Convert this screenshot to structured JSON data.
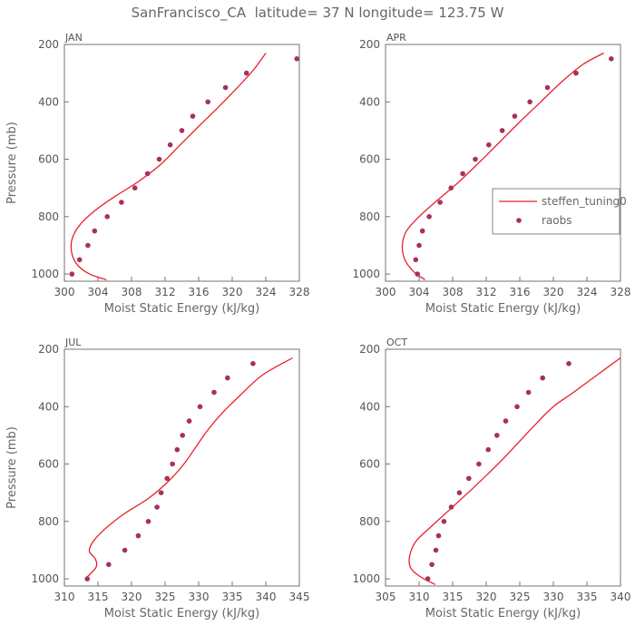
{
  "figure": {
    "title": "SanFrancisco_CA  latitude= 37 N longitude= 123.75 W"
  },
  "legend": {
    "model_label": "steffen_tuning0",
    "obs_label": "raobs",
    "placement": "right of APR panel"
  },
  "colors": {
    "model_line": "#e8202a",
    "obs_marker": "#a8305a",
    "axis": "#666666",
    "text": "#555555"
  },
  "chart_data": [
    {
      "type": "line",
      "panel": "JAN",
      "title": "JAN",
      "xlabel": "Moist Static Energy (kJ/kg)",
      "ylabel": "Pressure (mb)",
      "xlim": [
        300,
        328
      ],
      "xticks": [
        300,
        304,
        308,
        312,
        316,
        320,
        324,
        328
      ],
      "ylim": [
        200,
        1025
      ],
      "yticks": [
        200,
        400,
        600,
        800,
        1000
      ],
      "y_inverted": true,
      "grid": false,
      "series": [
        {
          "name": "steffen_tuning0",
          "kind": "line",
          "x": [
            305.0,
            303.0,
            301.6,
            300.9,
            300.9,
            301.8,
            303.6,
            306.0,
            308.7,
            311.4,
            313.8,
            316.2,
            318.3,
            320.3,
            322.5,
            324.0
          ],
          "y": [
            1020,
            1000,
            970,
            930,
            880,
            830,
            780,
            730,
            680,
            620,
            550,
            480,
            420,
            360,
            290,
            230
          ]
        },
        {
          "name": "raobs",
          "kind": "scatter",
          "x": [
            300.9,
            301.8,
            302.8,
            303.6,
            305.1,
            306.8,
            308.4,
            309.9,
            311.3,
            312.6,
            314.0,
            315.3,
            317.1,
            319.2,
            321.7,
            327.7
          ],
          "y": [
            1000,
            950,
            900,
            850,
            800,
            750,
            700,
            650,
            600,
            550,
            500,
            450,
            400,
            350,
            300,
            250
          ]
        }
      ]
    },
    {
      "type": "line",
      "panel": "APR",
      "title": "APR",
      "xlabel": "Moist Static Energy (kJ/kg)",
      "ylabel": "",
      "xlim": [
        300,
        328
      ],
      "xticks": [
        300,
        304,
        308,
        312,
        316,
        320,
        324,
        328
      ],
      "ylim": [
        200,
        1025
      ],
      "yticks": [
        200,
        400,
        600,
        800,
        1000
      ],
      "y_inverted": true,
      "grid": false,
      "series": [
        {
          "name": "steffen_tuning0",
          "kind": "line",
          "x": [
            304.7,
            303.3,
            302.3,
            302.0,
            302.5,
            304.0,
            306.3,
            308.7,
            311.2,
            313.6,
            316.0,
            318.5,
            321.0,
            323.5,
            326.0
          ],
          "y": [
            1020,
            990,
            950,
            900,
            850,
            800,
            740,
            680,
            610,
            540,
            470,
            400,
            330,
            270,
            230
          ]
        },
        {
          "name": "raobs",
          "kind": "scatter",
          "x": [
            303.8,
            303.6,
            304.0,
            304.4,
            305.2,
            306.5,
            307.8,
            309.2,
            310.7,
            312.3,
            313.9,
            315.4,
            317.2,
            319.3,
            322.7,
            326.9
          ],
          "y": [
            1000,
            950,
            900,
            850,
            800,
            750,
            700,
            650,
            600,
            550,
            500,
            450,
            400,
            350,
            300,
            250
          ]
        }
      ]
    },
    {
      "type": "line",
      "panel": "JUL",
      "title": "JUL",
      "xlabel": "Moist Static Energy (kJ/kg)",
      "ylabel": "Pressure (mb)",
      "xlim": [
        310,
        345
      ],
      "xticks": [
        310,
        315,
        320,
        325,
        330,
        335,
        340,
        345
      ],
      "ylim": [
        200,
        1025
      ],
      "yticks": [
        200,
        400,
        600,
        800,
        1000
      ],
      "y_inverted": true,
      "grid": false,
      "series": [
        {
          "name": "steffen_tuning0",
          "kind": "line",
          "x": [
            313.1,
            314.7,
            314.6,
            313.7,
            315.0,
            318.5,
            322.5,
            325.5,
            327.8,
            329.6,
            331.4,
            333.6,
            336.2,
            339.5,
            344.0
          ],
          "y": [
            1000,
            960,
            930,
            900,
            850,
            780,
            720,
            660,
            600,
            540,
            480,
            420,
            360,
            290,
            230
          ]
        },
        {
          "name": "raobs",
          "kind": "scatter",
          "x": [
            313.4,
            316.6,
            319.0,
            321.0,
            322.5,
            323.8,
            324.4,
            325.3,
            326.1,
            326.8,
            327.6,
            328.6,
            330.2,
            332.3,
            334.3,
            338.1
          ],
          "y": [
            1000,
            950,
            900,
            850,
            800,
            750,
            700,
            650,
            600,
            550,
            500,
            450,
            400,
            350,
            300,
            250
          ]
        }
      ]
    },
    {
      "type": "line",
      "panel": "OCT",
      "title": "OCT",
      "xlabel": "Moist Static Energy (kJ/kg)",
      "ylabel": "",
      "xlim": [
        305,
        340
      ],
      "xticks": [
        305,
        310,
        315,
        320,
        325,
        330,
        335,
        340
      ],
      "ylim": [
        200,
        1025
      ],
      "yticks": [
        200,
        400,
        600,
        800,
        1000
      ],
      "y_inverted": true,
      "grid": false,
      "series": [
        {
          "name": "steffen_tuning0",
          "kind": "line",
          "x": [
            312.4,
            310.0,
            308.7,
            308.6,
            309.5,
            311.7,
            314.5,
            317.3,
            320.0,
            322.6,
            325.0,
            327.4,
            330.0,
            333.0,
            336.5,
            340.0
          ],
          "y": [
            1020,
            990,
            960,
            920,
            870,
            820,
            760,
            700,
            640,
            580,
            520,
            460,
            400,
            350,
            290,
            230
          ]
        },
        {
          "name": "raobs",
          "kind": "scatter",
          "x": [
            311.3,
            311.9,
            312.5,
            312.9,
            313.7,
            314.8,
            316.0,
            317.4,
            318.9,
            320.3,
            321.6,
            322.9,
            324.6,
            326.3,
            328.4,
            332.3
          ],
          "y": [
            1000,
            950,
            900,
            850,
            800,
            750,
            700,
            650,
            600,
            550,
            500,
            450,
            400,
            350,
            300,
            250
          ]
        }
      ]
    }
  ]
}
